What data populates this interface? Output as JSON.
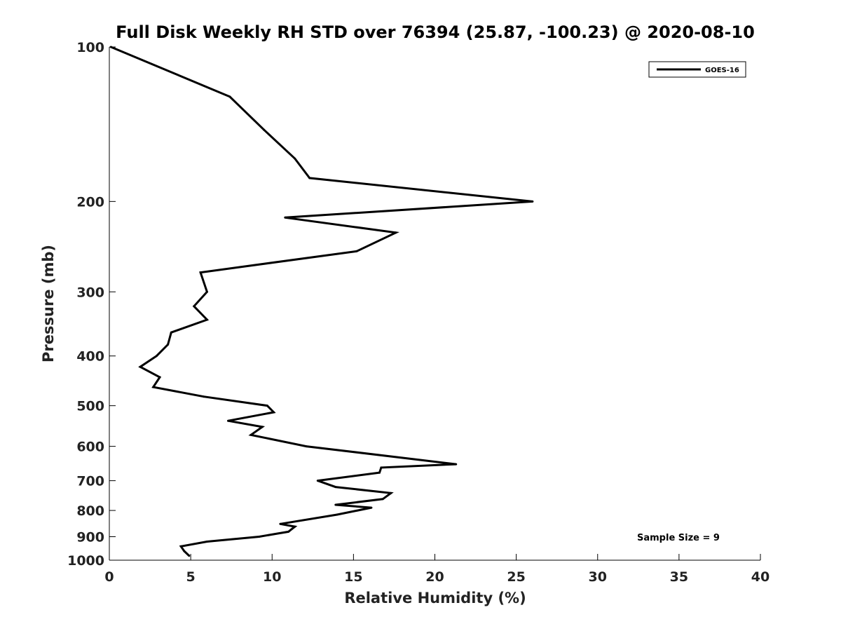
{
  "chart_data": {
    "type": "line",
    "title": "Full Disk Weekly RH STD over 76394 (25.87, -100.23) @ 2020-08-10",
    "xlabel": "Relative Humidity (%)",
    "ylabel": "Pressure (mb)",
    "xlim": [
      0,
      40
    ],
    "ylim": [
      100,
      1000
    ],
    "y_scale": "log",
    "y_reversed": true,
    "grid": false,
    "legend_position": "top-right",
    "x_ticks": [
      0,
      5,
      10,
      15,
      20,
      25,
      30,
      35,
      40
    ],
    "x_tick_labels": [
      "0",
      "5",
      "10",
      "15",
      "20",
      "25",
      "30",
      "35",
      "40"
    ],
    "y_ticks": [
      100,
      200,
      300,
      400,
      500,
      600,
      700,
      800,
      900,
      1000
    ],
    "y_tick_labels": [
      "100",
      "200",
      "300",
      "400",
      "500",
      "600",
      "700",
      "800",
      "900",
      "1000"
    ],
    "series": [
      {
        "name": "GOES-16",
        "color": "#000000",
        "points": [
          [
            0.1,
            100
          ],
          [
            7.4,
            125
          ],
          [
            9.5,
            145
          ],
          [
            11.4,
            165
          ],
          [
            12.3,
            180
          ],
          [
            26.0,
            200
          ],
          [
            10.8,
            215
          ],
          [
            17.6,
            230
          ],
          [
            15.2,
            250
          ],
          [
            5.6,
            275
          ],
          [
            6.0,
            300
          ],
          [
            5.2,
            320
          ],
          [
            6.0,
            340
          ],
          [
            3.8,
            360
          ],
          [
            3.6,
            380
          ],
          [
            2.9,
            400
          ],
          [
            1.9,
            420
          ],
          [
            3.1,
            440
          ],
          [
            2.7,
            460
          ],
          [
            5.8,
            480
          ],
          [
            9.7,
            500
          ],
          [
            10.1,
            515
          ],
          [
            7.3,
            535
          ],
          [
            9.4,
            550
          ],
          [
            8.7,
            570
          ],
          [
            12.1,
            600
          ],
          [
            21.3,
            650
          ],
          [
            16.7,
            660
          ],
          [
            16.6,
            675
          ],
          [
            12.8,
            700
          ],
          [
            13.9,
            720
          ],
          [
            17.3,
            740
          ],
          [
            16.8,
            760
          ],
          [
            13.9,
            780
          ],
          [
            16.1,
            790
          ],
          [
            14.0,
            815
          ],
          [
            10.5,
            850
          ],
          [
            11.4,
            860
          ],
          [
            11.0,
            880
          ],
          [
            9.2,
            900
          ],
          [
            6.0,
            920
          ],
          [
            4.4,
            940
          ],
          [
            4.6,
            960
          ],
          [
            4.9,
            980
          ]
        ]
      }
    ],
    "annotation": "Sample Size = 9"
  }
}
